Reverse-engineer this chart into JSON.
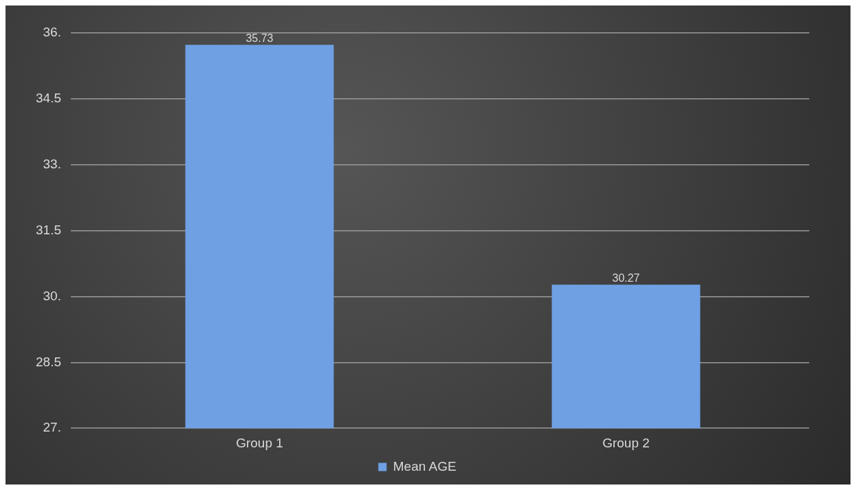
{
  "chart_data": {
    "type": "bar",
    "categories": [
      "Group 1",
      "Group 2"
    ],
    "series": [
      {
        "name": "Mean AGE",
        "color": "#6fa0e4",
        "values": [
          35.73,
          30.27
        ]
      }
    ],
    "ylim": [
      27,
      36
    ],
    "yticks": [
      {
        "value": 27,
        "label": "27."
      },
      {
        "value": 28.5,
        "label": "28.5"
      },
      {
        "value": 30,
        "label": "30."
      },
      {
        "value": 31.5,
        "label": "31.5"
      },
      {
        "value": 33,
        "label": "33."
      },
      {
        "value": 34.5,
        "label": "34.5"
      },
      {
        "value": 36,
        "label": "36."
      }
    ],
    "grid": "y",
    "legend": "bottom",
    "data_labels": true
  }
}
